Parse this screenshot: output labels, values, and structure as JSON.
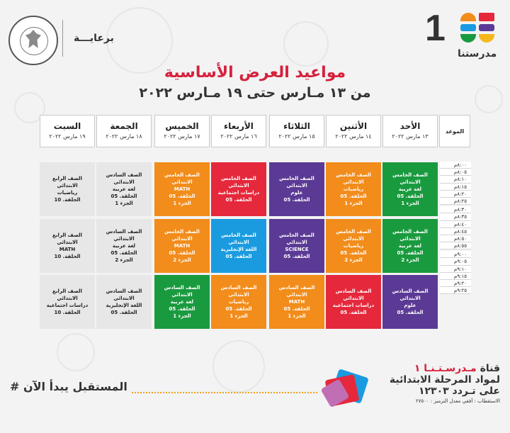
{
  "header": {
    "sponsor_label": "برعايـــة",
    "brand_number": "1",
    "brand_name": "مدرستنا",
    "title": "مواعيد العرض الأساسية",
    "subtitle": "من ١٣ مـارس حتى ١٩ مـارس ٢٠٢٢"
  },
  "schedule": {
    "time_header": "الموعد",
    "days": [
      {
        "name": "الأحد",
        "date": "١٣ مارس ٢٠٢٢"
      },
      {
        "name": "الأثنين",
        "date": "١٤ مارس ٢٠٢٢"
      },
      {
        "name": "الثلاثاء",
        "date": "١٥ مارس ٢٠٢٢"
      },
      {
        "name": "الأربعاء",
        "date": "١٦ مارس ٢٠٢٢"
      },
      {
        "name": "الخميس",
        "date": "١٧ مارس ٢٠٢٢"
      },
      {
        "name": "الجمعة",
        "date": "١٨ مارس ٢٠٢٢"
      },
      {
        "name": "السبت",
        "date": "١٩ مارس ٢٠٢٢"
      }
    ],
    "times": [
      "٨:٠٠م",
      "٨:٠٥م",
      "٨:١٠م",
      "٨:١٥م",
      "٨:٢٠م",
      "٨:٢٥م",
      "٨:٣٠م",
      "٨:٣٥م",
      "٨:٤٠م",
      "٨:٤٥م",
      "٨:٥٠م",
      "٨:٥٥م",
      "٩:٠٠م",
      "٩:٠٥م",
      "٩:١٠م",
      "٩:١٥م",
      "٩:٢٠م",
      "٩:٢٥م"
    ],
    "rows": [
      [
        {
          "lines": [
            "الصف الخامس الابتدائي",
            "لغة عربية",
            "الحلقة. 05",
            "الجزء 1"
          ],
          "color": "#1a9a3f"
        },
        {
          "lines": [
            "الصف الخامس الابتدائي",
            "رياضيات",
            "الحلقة. 05",
            "الجزء 1"
          ],
          "color": "#f28c1b"
        },
        {
          "lines": [
            "الصف الخامس الابتدائي",
            "علوم",
            "الحلقة. 05"
          ],
          "color": "#5b3a95"
        },
        {
          "lines": [
            "الصف الخامس الابتدائي",
            "دراسات اجتماعية",
            "الحلقة. 05"
          ],
          "color": "#e5283b"
        },
        {
          "lines": [
            "الصف الخامس الابتدائي",
            "MATH",
            "الحلقة. 05",
            "الجزء 1"
          ],
          "color": "#f28c1b"
        },
        {
          "lines": [
            "الصف السادس الابتدائي",
            "لغة عربية",
            "الحلقة. 05",
            "الجزء 1"
          ],
          "color": "#e7e7e7"
        },
        {
          "lines": [
            "الصف الرابع الابتدائي",
            "رياضيات",
            "الحلقة. 10"
          ],
          "color": "#e7e7e7"
        }
      ],
      [
        {
          "lines": [
            "الصف الخامس الابتدائي",
            "لغة عربية",
            "الحلقة. 05",
            "الجزء 2"
          ],
          "color": "#1a9a3f"
        },
        {
          "lines": [
            "الصف الخامس الابتدائي",
            "رياضيات",
            "الحلقة. 05",
            "الجزء 2"
          ],
          "color": "#f28c1b"
        },
        {
          "lines": [
            "الصف الخامس الابتدائي",
            "SCIENCE",
            "الحلقة. 05"
          ],
          "color": "#5b3a95"
        },
        {
          "lines": [
            "الصف الخامس الابتدائي",
            "اللغة الإنجليزية",
            "الحلقة. 05"
          ],
          "color": "#1a9be0"
        },
        {
          "lines": [
            "الصف الخامس الابتدائي",
            "MATH",
            "الحلقة. 05",
            "الجزء 2"
          ],
          "color": "#f28c1b"
        },
        {
          "lines": [
            "الصف السادس الابتدائي",
            "لغة عربية",
            "الحلقة. 05",
            "الجزء 2"
          ],
          "color": "#e7e7e7"
        },
        {
          "lines": [
            "الصف الرابع الابتدائي",
            "MATH",
            "الحلقة. 10"
          ],
          "color": "#e7e7e7"
        }
      ],
      [
        {
          "lines": [
            "الصف السادس الابتدائي",
            "علوم",
            "الحلقة. 05"
          ],
          "color": "#5b3a95"
        },
        {
          "lines": [
            "الصف السادس الابتدائي",
            "دراسات اجتماعية",
            "الحلقة. 05"
          ],
          "color": "#e5283b"
        },
        {
          "lines": [
            "الصف السادس الابتدائي",
            "MATH",
            "الحلقة. 05",
            "الجزء 1"
          ],
          "color": "#f28c1b"
        },
        {
          "lines": [
            "الصف السادس الابتدائي",
            "رياضيات",
            "الحلقة. 05",
            "الجزء 1"
          ],
          "color": "#f28c1b"
        },
        {
          "lines": [
            "الصف السادس الابتدائي",
            "لغة عربية",
            "الحلقة. 05",
            "الجزء 1"
          ],
          "color": "#1a9a3f"
        },
        {
          "lines": [
            "الصف السادس الابتدائي",
            "اللغة الإنجليزية",
            "الحلقة. 05"
          ],
          "color": "#e7e7e7"
        },
        {
          "lines": [
            "الصف الرابع الابتدائي",
            "دراسات اجتماعية",
            "الحلقة. 10"
          ],
          "color": "#e7e7e7"
        }
      ]
    ]
  },
  "footer": {
    "slogan": "# المستقبل يبدأ الآن",
    "channel_prefix": "قناة",
    "channel_name": "مـدرسـتـنـا ١",
    "line2": "لمواد المرحلة الابتدائية",
    "line3": "على تـردد ١٢٣٠٣",
    "line4": "الاستقطاب : أفقي معدل الترميز : ٢٧٥٠٠"
  }
}
